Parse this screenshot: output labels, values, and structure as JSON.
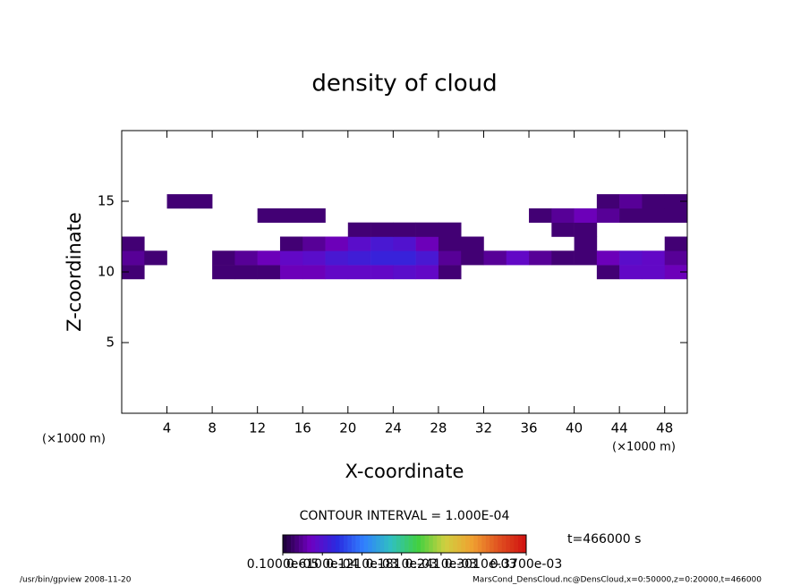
{
  "chart_data": {
    "type": "contourf",
    "title": "density of cloud",
    "xlabel": "X-coordinate",
    "ylabel": "Z-coordinate",
    "xunit": "(×1000 m)",
    "xlim": [
      0,
      50
    ],
    "ylim": [
      0,
      20
    ],
    "xticks": [
      4,
      8,
      12,
      16,
      20,
      24,
      28,
      32,
      36,
      40,
      44,
      48
    ],
    "yticks": [
      5,
      10,
      15
    ],
    "x": [
      1,
      3,
      5,
      7,
      9,
      11,
      13,
      15,
      17,
      19,
      21,
      23,
      25,
      27,
      29,
      31,
      33,
      35,
      37,
      39,
      41,
      43,
      45,
      47,
      49
    ],
    "y": [
      10,
      11,
      12,
      13,
      14,
      15
    ],
    "z": [
      [
        2e-05,
        0,
        0,
        0,
        2e-05,
        2e-05,
        2e-05,
        4e-05,
        4e-05,
        5e-05,
        5e-05,
        5e-05,
        5.5e-05,
        5e-05,
        2e-05,
        0,
        0,
        0,
        0,
        0,
        0,
        2e-05,
        5e-05,
        5e-05,
        4e-05
      ],
      [
        3e-05,
        2e-05,
        0,
        0,
        2e-05,
        3e-05,
        4e-05,
        5e-05,
        5.5e-05,
        6.5e-05,
        7e-05,
        7.5e-05,
        7.5e-05,
        6.5e-05,
        3e-05,
        2e-05,
        3e-05,
        5e-05,
        3e-05,
        2e-05,
        2e-05,
        4e-05,
        5.5e-05,
        5e-05,
        3e-05
      ],
      [
        2e-05,
        0,
        0,
        0,
        0,
        0,
        0,
        2e-05,
        3e-05,
        4e-05,
        5.5e-05,
        6.5e-05,
        6e-05,
        4e-05,
        2e-05,
        2e-05,
        0,
        0,
        0,
        0,
        2e-05,
        0,
        0,
        0,
        2e-05
      ],
      [
        0,
        0,
        0,
        0,
        0,
        0,
        0,
        0,
        0,
        0,
        2e-05,
        2e-05,
        2e-05,
        2e-05,
        2e-05,
        0,
        0,
        0,
        0,
        2e-05,
        2e-05,
        0,
        0,
        0,
        0
      ],
      [
        0,
        0,
        0,
        0,
        0,
        0,
        2e-05,
        2e-05,
        2e-05,
        0,
        0,
        0,
        0,
        0,
        0,
        0,
        0,
        0,
        2e-05,
        3e-05,
        4e-05,
        3e-05,
        2e-05,
        2e-05,
        2e-05
      ],
      [
        0,
        0,
        2e-05,
        2e-05,
        0,
        0,
        0,
        0,
        0,
        0,
        0,
        0,
        0,
        0,
        0,
        0,
        0,
        0,
        0,
        0,
        0,
        2e-05,
        3e-05,
        2e-05,
        2e-05
      ]
    ],
    "clim": [
      1e-06,
      0.00037
    ],
    "colormap": [
      "#1a0033",
      "#7000c0",
      "#2a2ae0",
      "#3080ff",
      "#30c0c0",
      "#40d040",
      "#d0d040",
      "#f0a030",
      "#e05020",
      "#d01010"
    ],
    "cticks": [
      {
        "value": 1e-06,
        "label": "0.1000e-05"
      },
      {
        "value": 6.1e-05,
        "label": "0.6100e-04"
      },
      {
        "value": 0.000121,
        "label": "0.1210e-03"
      },
      {
        "value": 0.000181,
        "label": "0.1810e-03"
      },
      {
        "value": 0.000241,
        "label": "0.2410e-03"
      },
      {
        "value": 0.000301,
        "label": "0.3010e-03"
      },
      {
        "value": 0.00037,
        "label": "0.3700e-03"
      }
    ],
    "contour_interval": "CONTOUR INTERVAL = 1.000E-04",
    "time_label": "t=466000 s",
    "footer_left": "/usr/bin/gpview   2008-11-20",
    "footer_right": "MarsCond_DensCloud.nc@DensCloud,x=0:50000,z=0:20000,t=466000"
  }
}
